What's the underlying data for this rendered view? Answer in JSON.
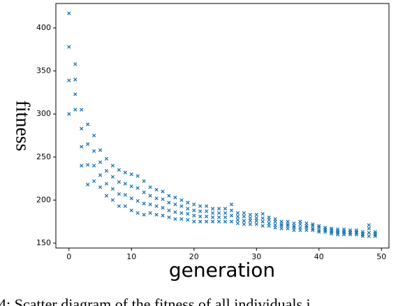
{
  "chart_data": {
    "type": "scatter",
    "x_label": "generation",
    "y_label": "fitness",
    "caption": "4: Scatter diagram of the fitness of all individuals i",
    "xlim": [
      -2.1,
      51.2
    ],
    "ylim": [
      144.3,
      428.4
    ],
    "xticks": [
      0,
      10,
      20,
      30,
      40,
      50
    ],
    "yticks": [
      150,
      200,
      250,
      300,
      350,
      400
    ],
    "marker": "x",
    "series": [
      {
        "color": "#1f77b4",
        "x": [
          0,
          0,
          0,
          0,
          1,
          1,
          1,
          1,
          2,
          2,
          2,
          2,
          3,
          3,
          3,
          3,
          4,
          4,
          4,
          4,
          5,
          5,
          5,
          5,
          6,
          6,
          6,
          6,
          7,
          7,
          7,
          7,
          8,
          8,
          8,
          8,
          9,
          9,
          9,
          9,
          10,
          10,
          10,
          10,
          11,
          11,
          11,
          11,
          12,
          12,
          12,
          12,
          13,
          13,
          13,
          13,
          14,
          14,
          14,
          14,
          15,
          15,
          15,
          15,
          16,
          16,
          16,
          16,
          17,
          17,
          17,
          17,
          18,
          18,
          18,
          18,
          19,
          19,
          19,
          19,
          20,
          20,
          20,
          20,
          21,
          21,
          21,
          21,
          22,
          22,
          22,
          22,
          23,
          23,
          23,
          23,
          24,
          24,
          24,
          24,
          25,
          25,
          25,
          25,
          26,
          26,
          26,
          26,
          27,
          27,
          27,
          27,
          28,
          28,
          28,
          28,
          29,
          29,
          29,
          29,
          30,
          30,
          30,
          30,
          31,
          31,
          31,
          31,
          32,
          32,
          32,
          32,
          33,
          33,
          33,
          33,
          34,
          34,
          34,
          34,
          35,
          35,
          35,
          35,
          36,
          36,
          36,
          36,
          37,
          37,
          37,
          37,
          38,
          38,
          38,
          38,
          39,
          39,
          39,
          39,
          40,
          40,
          40,
          40,
          41,
          41,
          41,
          41,
          42,
          42,
          42,
          42,
          43,
          43,
          43,
          43,
          44,
          44,
          44,
          44,
          45,
          45,
          45,
          45,
          46,
          46,
          46,
          46,
          47,
          47,
          47,
          47,
          48,
          48,
          48,
          48,
          49,
          49,
          49,
          49
        ],
        "y": [
          300,
          339,
          378,
          417,
          305,
          323,
          340,
          358,
          240,
          262,
          283,
          305,
          218,
          241,
          265,
          288,
          222,
          240,
          257,
          275,
          215,
          229,
          244,
          258,
          205,
          219,
          234,
          248,
          200,
          213,
          227,
          240,
          193,
          207,
          221,
          235,
          193,
          206,
          219,
          232,
          188,
          202,
          216,
          230,
          185,
          199,
          214,
          228,
          183,
          196,
          209,
          222,
          185,
          195,
          205,
          215,
          183,
          193,
          202,
          212,
          182,
          191,
          201,
          210,
          180,
          188,
          197,
          205,
          178,
          186,
          195,
          203,
          178,
          185,
          193,
          200,
          177,
          184,
          190,
          197,
          175,
          182,
          188,
          195,
          175,
          181,
          187,
          193,
          175,
          181,
          187,
          193,
          175,
          180,
          185,
          190,
          175,
          180,
          185,
          190,
          175,
          180,
          185,
          190,
          175,
          182,
          188,
          195,
          173,
          177,
          181,
          185,
          172,
          176,
          181,
          185,
          172,
          176,
          179,
          183,
          172,
          176,
          179,
          183,
          170,
          175,
          179,
          184,
          170,
          173,
          177,
          180,
          168,
          171,
          175,
          178,
          167,
          170,
          172,
          175,
          167,
          170,
          172,
          175,
          165,
          168,
          170,
          173,
          165,
          168,
          172,
          175,
          165,
          168,
          170,
          173,
          165,
          167,
          170,
          172,
          163,
          165,
          168,
          170,
          163,
          165,
          166,
          168,
          161,
          163,
          165,
          167,
          160,
          162,
          164,
          166,
          160,
          162,
          164,
          166,
          160,
          162,
          163,
          165,
          160,
          162,
          163,
          165,
          158,
          160,
          161,
          163,
          158,
          162,
          167,
          171,
          158,
          160,
          161,
          163
        ]
      }
    ]
  }
}
